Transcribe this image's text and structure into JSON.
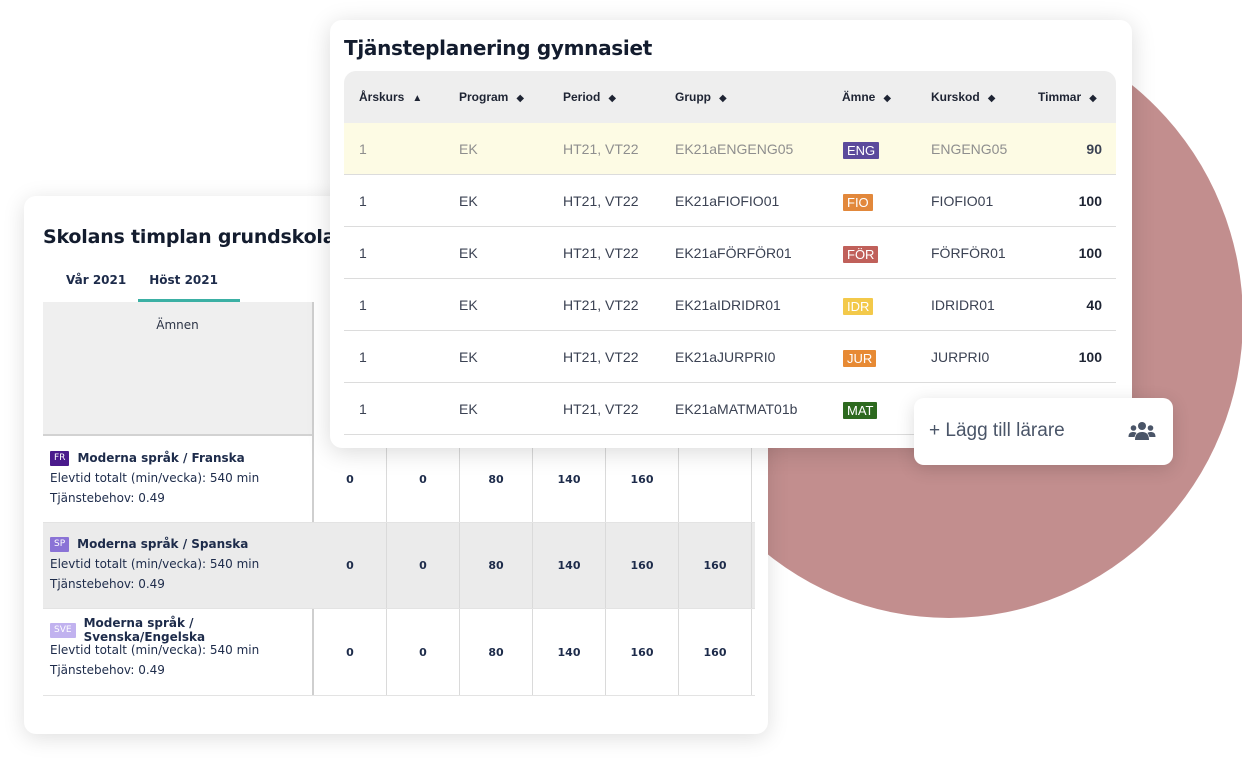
{
  "back_card": {
    "title": "Skolans timplan grundskola",
    "tabs": [
      {
        "label": "Vår 2021",
        "active": false
      },
      {
        "label": "Höst 2021",
        "active": true
      }
    ],
    "subjects_header": "Ämnen",
    "rows": [
      {
        "tag": "FR",
        "tag_color": "#4a1a8c",
        "name": "Moderna språk / Franska",
        "elevtid": "Elevtid totalt (min/vecka): 540 min",
        "behov": "Tjänstebehov: 0.49",
        "values": [
          "0",
          "0",
          "80",
          "140",
          "160",
          ""
        ],
        "shaded": false
      },
      {
        "tag": "SP",
        "tag_color": "#8a73d6",
        "name": "Moderna språk / Spanska",
        "elevtid": "Elevtid totalt (min/vecka): 540 min",
        "behov": "Tjänstebehov: 0.49",
        "values": [
          "0",
          "0",
          "80",
          "140",
          "160",
          "160"
        ],
        "shaded": true
      },
      {
        "tag": "SVE",
        "tag_color": "#c1b2ef",
        "name": "Moderna språk / Svenska/Engelska",
        "elevtid": "Elevtid totalt (min/vecka): 540 min",
        "behov": "Tjänstebehov: 0.49",
        "values": [
          "0",
          "0",
          "80",
          "140",
          "160",
          "160"
        ],
        "shaded": false
      }
    ]
  },
  "front_card": {
    "title": "Tjänsteplanering gymnasiet",
    "columns": [
      {
        "label": "Årskurs",
        "sort": "▲"
      },
      {
        "label": "Program",
        "sort": "◆"
      },
      {
        "label": "Period",
        "sort": "◆"
      },
      {
        "label": "Grupp",
        "sort": "◆"
      },
      {
        "label": "Ämne",
        "sort": "◆"
      },
      {
        "label": "Kurskod",
        "sort": "◆"
      },
      {
        "label": "Timmar",
        "sort": "◆"
      }
    ],
    "rows": [
      {
        "arskurs": "1",
        "program": "EK",
        "period": "HT21, VT22",
        "grupp": "EK21aENGENG05",
        "amne": "ENG",
        "amne_color": "#5b4a9c",
        "kurskod": "ENGENG05",
        "timmar": "90",
        "highlight": true
      },
      {
        "arskurs": "1",
        "program": "EK",
        "period": "HT21, VT22",
        "grupp": "EK21aFIOFIO01",
        "amne": "FIO",
        "amne_color": "#e2883b",
        "kurskod": "FIOFIO01",
        "timmar": "100",
        "highlight": false
      },
      {
        "arskurs": "1",
        "program": "EK",
        "period": "HT21, VT22",
        "grupp": "EK21aFÖRFÖR01",
        "amne": "FÖR",
        "amne_color": "#c0605a",
        "kurskod": "FÖRFÖR01",
        "timmar": "100",
        "highlight": false
      },
      {
        "arskurs": "1",
        "program": "EK",
        "period": "HT21, VT22",
        "grupp": "EK21aIDRIDR01",
        "amne": "IDR",
        "amne_color": "#f3c94a",
        "kurskod": "IDRIDR01",
        "timmar": "40",
        "highlight": false
      },
      {
        "arskurs": "1",
        "program": "EK",
        "period": "HT21, VT22",
        "grupp": "EK21aJURPRI0",
        "amne": "JUR",
        "amne_color": "#e78a34",
        "kurskod": "JURPRI0",
        "timmar": "100",
        "highlight": false
      },
      {
        "arskurs": "1",
        "program": "EK",
        "period": "HT21, VT22",
        "grupp": "EK21aMATMAT01b",
        "amne": "MAT",
        "amne_color": "#2d6a1f",
        "kurskod": "",
        "timmar": "",
        "highlight": false
      }
    ]
  },
  "add_teacher": {
    "label": "+ Lägg till lärare",
    "icon": "users-icon"
  },
  "colors": {
    "accent_teal": "#3bb0a4",
    "circle": "#c28e8e",
    "highlight_row": "#fdfbe4"
  }
}
